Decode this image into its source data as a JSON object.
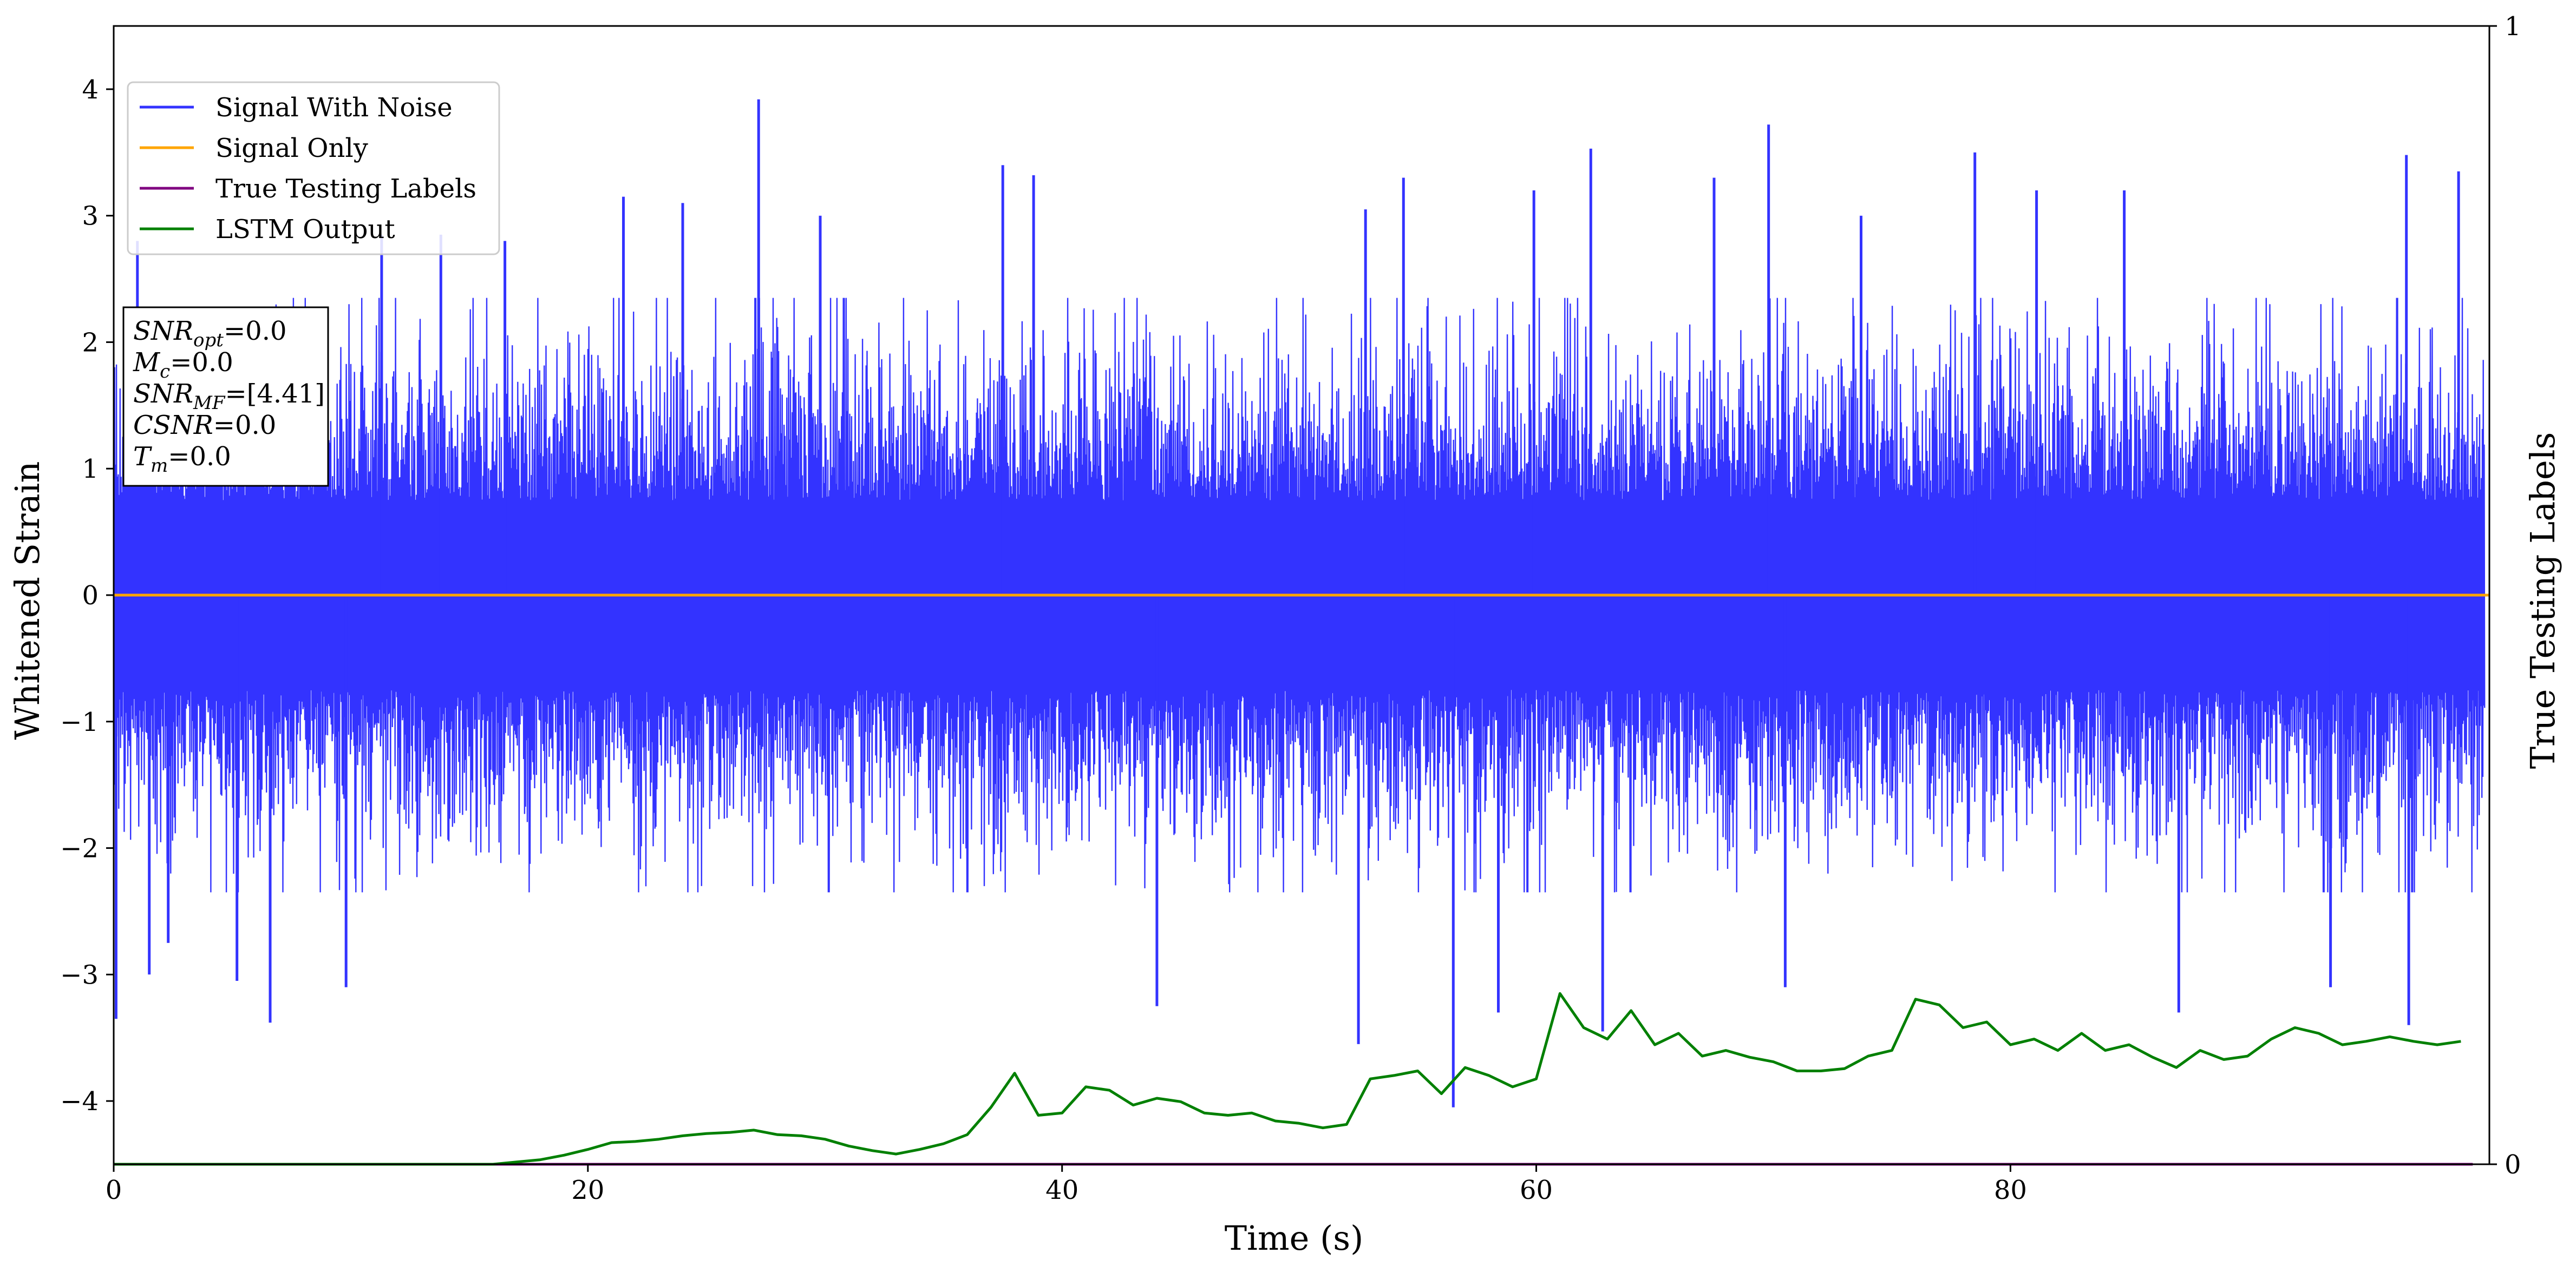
{
  "chart_data": {
    "type": "line",
    "xlabel": "Time (s)",
    "ylabel": "Whitened Strain",
    "y2label": "True Testing Labels",
    "xlim": [
      0,
      100.2
    ],
    "ylim": [
      -4.5,
      4.5
    ],
    "y2lim": [
      0,
      1
    ],
    "xticks": [
      0,
      20,
      40,
      60,
      80
    ],
    "yticks": [
      -4,
      -3,
      -2,
      -1,
      0,
      1,
      2,
      3,
      4
    ],
    "y2ticks": [
      0,
      1
    ],
    "xtick_labels": [
      "0",
      "20",
      "40",
      "60",
      "80"
    ],
    "ytick_labels": [
      "−4",
      "−3",
      "−2",
      "−1",
      "0",
      "1",
      "2",
      "3",
      "4"
    ],
    "y2tick_labels": [
      "0",
      "1"
    ],
    "grid": false,
    "legend_position": "top-left",
    "series": [
      {
        "name": "Signal With Noise",
        "color": "#3333ff",
        "style": "dense noise",
        "baseline": 0,
        "typical_range": [
          -1.9,
          1.9
        ],
        "spikes": [
          [
            0.1,
            -3.35
          ],
          [
            1.0,
            2.8
          ],
          [
            1.5,
            -3.0
          ],
          [
            2.3,
            -2.75
          ],
          [
            5.2,
            -3.05
          ],
          [
            6.6,
            -3.38
          ],
          [
            9.8,
            -3.1
          ],
          [
            11.3,
            2.85
          ],
          [
            13.8,
            2.85
          ],
          [
            16.5,
            2.8
          ],
          [
            21.5,
            3.15
          ],
          [
            24.0,
            3.1
          ],
          [
            27.2,
            3.92
          ],
          [
            29.8,
            3.0
          ],
          [
            37.5,
            3.4
          ],
          [
            38.8,
            3.32
          ],
          [
            44.0,
            -3.25
          ],
          [
            52.5,
            -3.55
          ],
          [
            52.8,
            3.05
          ],
          [
            54.4,
            3.3
          ],
          [
            56.5,
            -4.05
          ],
          [
            58.4,
            -3.3
          ],
          [
            59.9,
            3.2
          ],
          [
            62.3,
            3.53
          ],
          [
            62.8,
            -3.45
          ],
          [
            67.5,
            3.3
          ],
          [
            69.8,
            3.72
          ],
          [
            70.5,
            -3.1
          ],
          [
            73.7,
            3.0
          ],
          [
            78.5,
            3.5
          ],
          [
            81.1,
            3.2
          ],
          [
            84.8,
            3.2
          ],
          [
            87.1,
            -3.3
          ],
          [
            93.5,
            -3.1
          ],
          [
            96.7,
            3.48
          ],
          [
            96.8,
            -3.4
          ],
          [
            98.9,
            3.35
          ]
        ]
      },
      {
        "name": "Signal Only",
        "color": "#ffa500",
        "x": [
          0,
          100.2
        ],
        "y": [
          0,
          0
        ]
      },
      {
        "name": "True Testing Labels",
        "color": "#800080",
        "axis": "right",
        "x": [
          0,
          99.5
        ],
        "y": [
          0,
          0
        ]
      },
      {
        "name": "LSTM Output",
        "color": "#008000",
        "axis": "right",
        "x": [
          0,
          16,
          17,
          18,
          19,
          20,
          21,
          22,
          23,
          24,
          25,
          26,
          27,
          28,
          29,
          30,
          31,
          32,
          33,
          34,
          35,
          36,
          37,
          38,
          39,
          40,
          41,
          42,
          43,
          44,
          45,
          46,
          47,
          48,
          49,
          50,
          51,
          52,
          53,
          54,
          55,
          56,
          57,
          58,
          59,
          60,
          61,
          62,
          63,
          64,
          65,
          66,
          67,
          68,
          69,
          70,
          71,
          72,
          73,
          74,
          75,
          76,
          77,
          78,
          79,
          80,
          81,
          82,
          83,
          84,
          85,
          86,
          87,
          88,
          89,
          90,
          91,
          92,
          93,
          94,
          95,
          96,
          97,
          98,
          99
        ],
        "y": [
          0,
          0,
          0.002,
          0.004,
          0.008,
          0.013,
          0.019,
          0.02,
          0.022,
          0.025,
          0.027,
          0.028,
          0.03,
          0.026,
          0.025,
          0.022,
          0.016,
          0.012,
          0.009,
          0.013,
          0.018,
          0.026,
          0.05,
          0.08,
          0.043,
          0.045,
          0.068,
          0.065,
          0.052,
          0.058,
          0.055,
          0.045,
          0.043,
          0.045,
          0.038,
          0.036,
          0.032,
          0.035,
          0.075,
          0.078,
          0.082,
          0.062,
          0.085,
          0.078,
          0.068,
          0.075,
          0.15,
          0.12,
          0.11,
          0.135,
          0.105,
          0.115,
          0.095,
          0.1,
          0.094,
          0.09,
          0.082,
          0.082,
          0.084,
          0.095,
          0.1,
          0.145,
          0.14,
          0.12,
          0.125,
          0.105,
          0.11,
          0.1,
          0.115,
          0.1,
          0.105,
          0.094,
          0.085,
          0.1,
          0.092,
          0.095,
          0.11,
          0.12,
          0.115,
          0.105,
          0.108,
          0.112,
          0.108,
          0.105,
          0.108
        ]
      }
    ],
    "annotation": [
      {
        "symbol": "SNR",
        "sub": "opt",
        "value": "=0.0"
      },
      {
        "symbol": "M",
        "sub": "c",
        "value": "=0.0"
      },
      {
        "symbol": "SNR",
        "sub": "MF",
        "value": "=[4.41]"
      },
      {
        "symbol": "CSNR",
        "sub": "",
        "value": "=0.0"
      },
      {
        "symbol": "T",
        "sub": "m",
        "value": "=0.0"
      }
    ]
  }
}
